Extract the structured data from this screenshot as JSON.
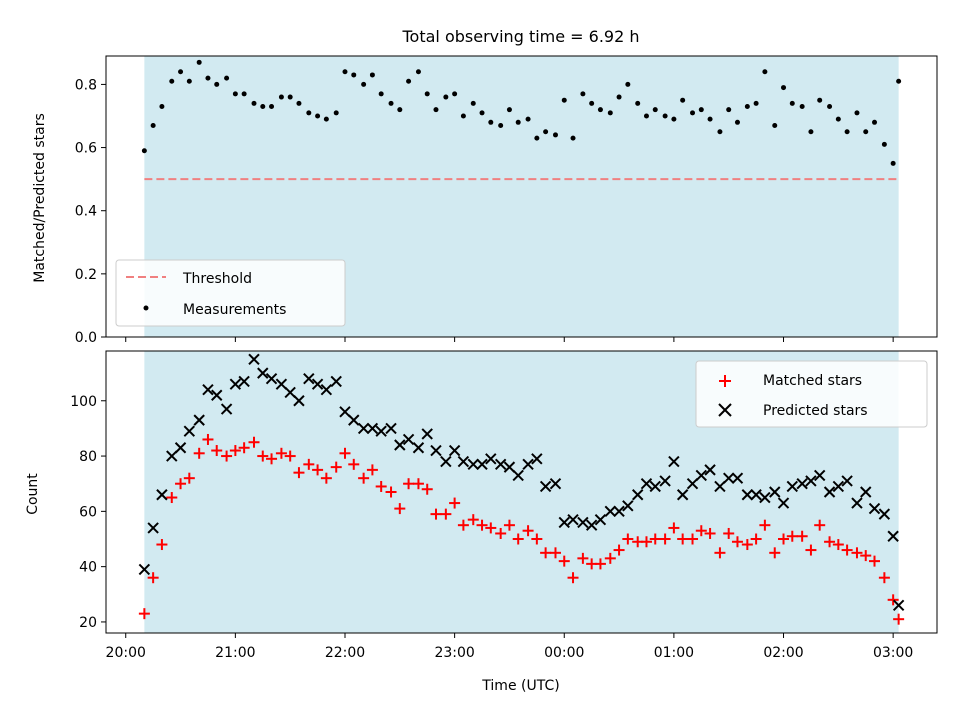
{
  "chart_data": [
    {
      "type": "scatter",
      "title": "Total observing time = 6.92 h",
      "xlabel": "",
      "ylabel": "Matched/Predicted stars",
      "x_axis": "time (UTC), hours after 20:00",
      "xlim": [
        -0.18,
        7.4
      ],
      "ylim": [
        0,
        0.89
      ],
      "yticks": [
        0.0,
        0.2,
        0.4,
        0.6,
        0.8
      ],
      "ytick_labels": [
        "0.0",
        "0.2",
        "0.4",
        "0.6",
        "0.8"
      ],
      "shaded_span": [
        0.17,
        7.05
      ],
      "legend_position": "lower-left",
      "threshold": {
        "name": "Threshold",
        "value": 0.5,
        "color": "#f08080"
      },
      "series": [
        {
          "name": "Measurements",
          "color": "#000000",
          "x": [
            0.17,
            0.25,
            0.33,
            0.42,
            0.5,
            0.58,
            0.67,
            0.75,
            0.83,
            0.92,
            1.0,
            1.08,
            1.17,
            1.25,
            1.33,
            1.42,
            1.5,
            1.58,
            1.67,
            1.75,
            1.83,
            1.92,
            2.0,
            2.08,
            2.17,
            2.25,
            2.33,
            2.42,
            2.5,
            2.58,
            2.67,
            2.75,
            2.83,
            2.92,
            3.0,
            3.08,
            3.17,
            3.25,
            3.33,
            3.42,
            3.5,
            3.58,
            3.67,
            3.75,
            3.83,
            3.92,
            4.0,
            4.08,
            4.17,
            4.25,
            4.33,
            4.42,
            4.5,
            4.58,
            4.67,
            4.75,
            4.83,
            4.92,
            5.0,
            5.08,
            5.17,
            5.25,
            5.33,
            5.42,
            5.5,
            5.58,
            5.67,
            5.75,
            5.83,
            5.92,
            6.0,
            6.08,
            6.17,
            6.25,
            6.33,
            6.42,
            6.5,
            6.58,
            6.67,
            6.75,
            6.83,
            6.92,
            7.0,
            7.05
          ],
          "y": [
            0.59,
            0.67,
            0.73,
            0.81,
            0.84,
            0.81,
            0.87,
            0.82,
            0.8,
            0.82,
            0.77,
            0.77,
            0.74,
            0.73,
            0.73,
            0.76,
            0.76,
            0.74,
            0.71,
            0.7,
            0.69,
            0.71,
            0.84,
            0.83,
            0.8,
            0.83,
            0.77,
            0.74,
            0.72,
            0.81,
            0.84,
            0.77,
            0.72,
            0.76,
            0.77,
            0.7,
            0.74,
            0.71,
            0.68,
            0.67,
            0.72,
            0.68,
            0.69,
            0.63,
            0.65,
            0.64,
            0.75,
            0.63,
            0.77,
            0.74,
            0.72,
            0.71,
            0.76,
            0.8,
            0.74,
            0.7,
            0.72,
            0.7,
            0.69,
            0.75,
            0.71,
            0.72,
            0.69,
            0.65,
            0.72,
            0.68,
            0.73,
            0.74,
            0.84,
            0.67,
            0.79,
            0.74,
            0.73,
            0.65,
            0.75,
            0.73,
            0.69,
            0.65,
            0.71,
            0.65,
            0.68,
            0.61,
            0.55,
            0.81
          ]
        }
      ]
    },
    {
      "type": "scatter",
      "title": "",
      "xlabel": "Time (UTC)",
      "ylabel": "Count",
      "xlim": [
        -0.18,
        7.4
      ],
      "ylim": [
        16,
        118
      ],
      "yticks": [
        20,
        40,
        60,
        80,
        100
      ],
      "ytick_labels": [
        "20",
        "40",
        "60",
        "80",
        "100"
      ],
      "xticks": [
        0,
        1,
        2,
        3,
        4,
        5,
        6,
        7
      ],
      "xtick_labels": [
        "20:00",
        "21:00",
        "22:00",
        "23:00",
        "00:00",
        "01:00",
        "02:00",
        "03:00"
      ],
      "shaded_span": [
        0.17,
        7.05
      ],
      "legend_position": "upper-right",
      "series": [
        {
          "name": "Matched stars",
          "marker": "+",
          "color": "#ff0000",
          "x": [
            0.17,
            0.25,
            0.33,
            0.42,
            0.5,
            0.58,
            0.67,
            0.75,
            0.83,
            0.92,
            1.0,
            1.08,
            1.17,
            1.25,
            1.33,
            1.42,
            1.5,
            1.58,
            1.67,
            1.75,
            1.83,
            1.92,
            2.0,
            2.08,
            2.17,
            2.25,
            2.33,
            2.42,
            2.5,
            2.58,
            2.67,
            2.75,
            2.83,
            2.92,
            3.0,
            3.08,
            3.17,
            3.25,
            3.33,
            3.42,
            3.5,
            3.58,
            3.67,
            3.75,
            3.83,
            3.92,
            4.0,
            4.08,
            4.17,
            4.25,
            4.33,
            4.42,
            4.5,
            4.58,
            4.67,
            4.75,
            4.83,
            4.92,
            5.0,
            5.08,
            5.17,
            5.25,
            5.33,
            5.42,
            5.5,
            5.58,
            5.67,
            5.75,
            5.83,
            5.92,
            6.0,
            6.08,
            6.17,
            6.25,
            6.33,
            6.42,
            6.5,
            6.58,
            6.67,
            6.75,
            6.83,
            6.92,
            7.0,
            7.05
          ],
          "y": [
            23,
            36,
            48,
            65,
            70,
            72,
            81,
            86,
            82,
            80,
            82,
            83,
            85,
            80,
            79,
            81,
            80,
            74,
            77,
            75,
            72,
            76,
            81,
            77,
            72,
            75,
            69,
            67,
            61,
            70,
            70,
            68,
            59,
            59,
            63,
            55,
            57,
            55,
            54,
            52,
            55,
            50,
            53,
            50,
            45,
            45,
            42,
            36,
            43,
            41,
            41,
            43,
            46,
            50,
            49,
            49,
            50,
            50,
            54,
            50,
            50,
            53,
            52,
            45,
            52,
            49,
            48,
            50,
            55,
            45,
            50,
            51,
            51,
            46,
            55,
            49,
            48,
            46,
            45,
            44,
            42,
            36,
            28,
            21
          ]
        },
        {
          "name": "Predicted stars",
          "marker": "x",
          "color": "#000000",
          "x": [
            0.17,
            0.25,
            0.33,
            0.42,
            0.5,
            0.58,
            0.67,
            0.75,
            0.83,
            0.92,
            1.0,
            1.08,
            1.17,
            1.25,
            1.33,
            1.42,
            1.5,
            1.58,
            1.67,
            1.75,
            1.83,
            1.92,
            2.0,
            2.08,
            2.17,
            2.25,
            2.33,
            2.42,
            2.5,
            2.58,
            2.67,
            2.75,
            2.83,
            2.92,
            3.0,
            3.08,
            3.17,
            3.25,
            3.33,
            3.42,
            3.5,
            3.58,
            3.67,
            3.75,
            3.83,
            3.92,
            4.0,
            4.08,
            4.17,
            4.25,
            4.33,
            4.42,
            4.5,
            4.58,
            4.67,
            4.75,
            4.83,
            4.92,
            5.0,
            5.08,
            5.17,
            5.25,
            5.33,
            5.42,
            5.5,
            5.58,
            5.67,
            5.75,
            5.83,
            5.92,
            6.0,
            6.08,
            6.17,
            6.25,
            6.33,
            6.42,
            6.5,
            6.58,
            6.67,
            6.75,
            6.83,
            6.92,
            7.0,
            7.05
          ],
          "y": [
            39,
            54,
            66,
            80,
            83,
            89,
            93,
            104,
            102,
            97,
            106,
            107,
            115,
            110,
            108,
            106,
            103,
            100,
            108,
            106,
            104,
            107,
            96,
            93,
            90,
            90,
            89,
            90,
            84,
            86,
            83,
            88,
            82,
            78,
            82,
            78,
            77,
            77,
            79,
            77,
            76,
            73,
            77,
            79,
            69,
            70,
            56,
            57,
            56,
            55,
            57,
            60,
            60,
            62,
            66,
            70,
            69,
            71,
            78,
            66,
            70,
            73,
            75,
            69,
            72,
            72,
            66,
            66,
            65,
            67,
            63,
            69,
            70,
            71,
            73,
            67,
            69,
            71,
            63,
            67,
            61,
            59,
            51,
            26
          ]
        }
      ]
    }
  ],
  "colors": {
    "shade": "#add8e6",
    "shade_alpha": 0.55,
    "threshold": "#f08080",
    "matched": "#ff0000",
    "predicted": "#000000"
  }
}
